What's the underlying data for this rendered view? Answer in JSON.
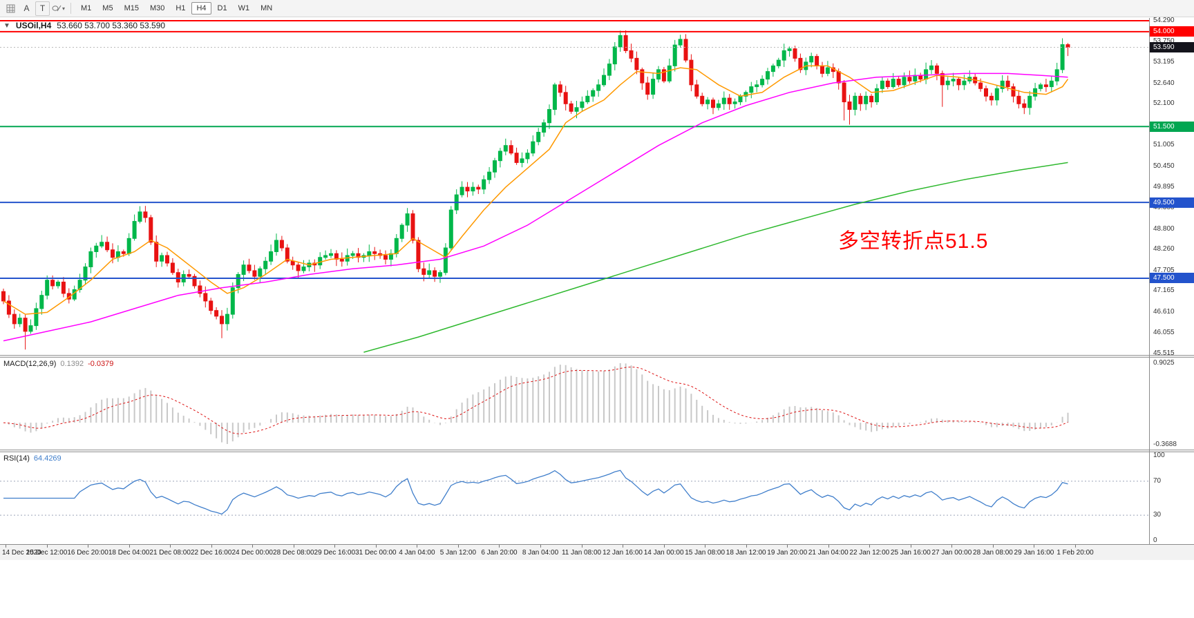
{
  "toolbar": {
    "text_label_tool": "A",
    "text_tool": "T",
    "timeframes": [
      "M1",
      "M5",
      "M15",
      "M30",
      "H1",
      "H4",
      "D1",
      "W1",
      "MN"
    ],
    "active_timeframe": "H4"
  },
  "icons": {
    "caret_down": "▾",
    "one_click_arrow": "▼"
  },
  "chart_data": {
    "type": "candlestick",
    "symbol_title": "USOil,H4",
    "ohlc_text": "53.660 53.700 53.360 53.590",
    "timeframe": "H4",
    "price_min": 45.515,
    "price_max": 54.29,
    "up_color": "#00b74a",
    "down_color": "#e81212",
    "first_open": 47.15,
    "closes": [
      46.9,
      46.55,
      46.3,
      46.45,
      46.1,
      46.25,
      46.7,
      47.05,
      47.45,
      47.3,
      47.4,
      47.1,
      46.95,
      47.2,
      47.45,
      47.8,
      48.2,
      48.35,
      48.45,
      48.25,
      48.05,
      48.2,
      48.15,
      48.55,
      49,
      49.25,
      49.1,
      48.45,
      47.95,
      48.1,
      47.9,
      47.65,
      47.4,
      47.6,
      47.55,
      47.3,
      47.1,
      46.9,
      46.65,
      46.5,
      46.3,
      46.55,
      47.25,
      47.6,
      47.85,
      47.7,
      47.55,
      47.75,
      47.95,
      48.2,
      48.5,
      48.3,
      47.95,
      47.85,
      47.7,
      47.8,
      47.9,
      47.85,
      48.05,
      48.1,
      48.15,
      48,
      47.95,
      48.1,
      48.15,
      48.05,
      48.1,
      48.2,
      48.15,
      48.1,
      48,
      48.15,
      48.55,
      48.9,
      49.2,
      48.5,
      47.75,
      47.6,
      47.7,
      47.55,
      47.65,
      48.3,
      49.3,
      49.7,
      49.9,
      49.8,
      49.9,
      49.85,
      50.1,
      50.3,
      50.6,
      50.85,
      51,
      50.8,
      50.55,
      50.65,
      50.8,
      51.1,
      51.35,
      51.6,
      51.95,
      52.6,
      52.4,
      52.1,
      51.9,
      52,
      52.15,
      52.3,
      52.45,
      52.6,
      52.85,
      53.15,
      53.6,
      53.9,
      53.5,
      53.3,
      53,
      52.65,
      52.35,
      52.75,
      53,
      52.7,
      53.1,
      53.65,
      53.8,
      53.25,
      52.6,
      52.3,
      52.1,
      52.2,
      52,
      52.1,
      52.25,
      52.1,
      52.15,
      52.3,
      52.4,
      52.55,
      52.6,
      52.75,
      52.95,
      53.1,
      53.25,
      53.5,
      53.55,
      53.3,
      53,
      53.2,
      53.35,
      53.1,
      52.9,
      53.05,
      52.95,
      52.65,
      52.15,
      51.95,
      52.3,
      52.1,
      52.3,
      52.15,
      52.5,
      52.7,
      52.55,
      52.75,
      52.6,
      52.8,
      52.7,
      52.85,
      52.75,
      53,
      53.1,
      52.9,
      52.6,
      52.7,
      52.75,
      52.6,
      52.7,
      52.8,
      52.65,
      52.5,
      52.3,
      52.2,
      52.5,
      52.7,
      52.55,
      52.3,
      52.1,
      52,
      52.3,
      52.5,
      52.6,
      52.55,
      52.7,
      53,
      53.66,
      53.59
    ],
    "wick_overrides": {
      "4": {
        "low": 45.62
      },
      "25": {
        "high": 49.4
      },
      "40": {
        "low": 45.92
      },
      "113": {
        "high": 54.03
      },
      "124": {
        "high": 53.92
      },
      "154": {
        "low": 51.66
      },
      "155": {
        "low": 51.55
      },
      "172": {
        "low": 52.02
      },
      "195": {
        "low": 53.36,
        "high": 53.7
      }
    },
    "h_lines": [
      {
        "price": 54.29,
        "color": "#ff0000",
        "width": 2
      },
      {
        "price": 54.0,
        "color": "#ff0000",
        "width": 2,
        "badge": "54.000"
      },
      {
        "price": 51.5,
        "color": "#00a651",
        "width": 2,
        "badge": "51.500"
      },
      {
        "price": 49.5,
        "color": "#2353cc",
        "width": 2,
        "badge": "49.500"
      },
      {
        "price": 47.5,
        "color": "#2353cc",
        "width": 2,
        "badge": "47.500"
      }
    ],
    "current_price": {
      "value": "53.590",
      "price": 53.59,
      "badge_color": "#14141c"
    },
    "moving_averages": [
      {
        "name": "ma-fast",
        "color": "#ff9900",
        "points": [
          [
            0,
            46.9
          ],
          [
            4,
            46.55
          ],
          [
            8,
            46.6
          ],
          [
            12,
            47.0
          ],
          [
            16,
            47.45
          ],
          [
            20,
            48.0
          ],
          [
            24,
            48.2
          ],
          [
            27,
            48.5
          ],
          [
            30,
            48.3
          ],
          [
            34,
            47.85
          ],
          [
            38,
            47.4
          ],
          [
            41,
            47.1
          ],
          [
            44,
            47.25
          ],
          [
            48,
            47.6
          ],
          [
            52,
            48.0
          ],
          [
            56,
            47.85
          ],
          [
            60,
            48.0
          ],
          [
            64,
            48.05
          ],
          [
            68,
            48.1
          ],
          [
            72,
            48.15
          ],
          [
            75,
            48.55
          ],
          [
            78,
            48.3
          ],
          [
            81,
            48.05
          ],
          [
            84,
            48.6
          ],
          [
            88,
            49.3
          ],
          [
            92,
            49.9
          ],
          [
            96,
            50.4
          ],
          [
            100,
            50.9
          ],
          [
            103,
            51.6
          ],
          [
            106,
            51.9
          ],
          [
            110,
            52.2
          ],
          [
            113,
            52.6
          ],
          [
            116,
            52.95
          ],
          [
            120,
            52.9
          ],
          [
            124,
            53.05
          ],
          [
            127,
            53.0
          ],
          [
            131,
            52.6
          ],
          [
            135,
            52.3
          ],
          [
            139,
            52.4
          ],
          [
            143,
            52.8
          ],
          [
            147,
            53.1
          ],
          [
            151,
            53.1
          ],
          [
            155,
            52.8
          ],
          [
            159,
            52.4
          ],
          [
            163,
            52.45
          ],
          [
            167,
            52.65
          ],
          [
            171,
            52.85
          ],
          [
            175,
            52.8
          ],
          [
            179,
            52.7
          ],
          [
            183,
            52.55
          ],
          [
            187,
            52.4
          ],
          [
            191,
            52.35
          ],
          [
            194,
            52.55
          ],
          [
            195,
            52.75
          ]
        ]
      },
      {
        "name": "ma-mid",
        "color": "#ff00ff",
        "points": [
          [
            0,
            45.85
          ],
          [
            8,
            46.1
          ],
          [
            16,
            46.35
          ],
          [
            24,
            46.7
          ],
          [
            32,
            47.05
          ],
          [
            40,
            47.25
          ],
          [
            48,
            47.4
          ],
          [
            56,
            47.6
          ],
          [
            64,
            47.75
          ],
          [
            72,
            47.85
          ],
          [
            80,
            48.0
          ],
          [
            88,
            48.35
          ],
          [
            96,
            48.9
          ],
          [
            104,
            49.6
          ],
          [
            112,
            50.3
          ],
          [
            120,
            51.0
          ],
          [
            128,
            51.6
          ],
          [
            136,
            52.05
          ],
          [
            144,
            52.4
          ],
          [
            152,
            52.65
          ],
          [
            160,
            52.8
          ],
          [
            168,
            52.85
          ],
          [
            176,
            52.9
          ],
          [
            184,
            52.9
          ],
          [
            190,
            52.85
          ],
          [
            195,
            52.8
          ]
        ]
      },
      {
        "name": "ma-slow",
        "color": "#2db82d",
        "points": [
          [
            66,
            45.55
          ],
          [
            76,
            45.95
          ],
          [
            86,
            46.4
          ],
          [
            96,
            46.85
          ],
          [
            106,
            47.3
          ],
          [
            116,
            47.75
          ],
          [
            126,
            48.2
          ],
          [
            136,
            48.65
          ],
          [
            146,
            49.05
          ],
          [
            156,
            49.45
          ],
          [
            166,
            49.8
          ],
          [
            176,
            50.1
          ],
          [
            186,
            50.35
          ],
          [
            195,
            50.55
          ]
        ]
      }
    ],
    "axis_ticks": [
      "54.290",
      "53.750",
      "53.195",
      "52.640",
      "52.100",
      "51.005",
      "50.450",
      "49.895",
      "49.355",
      "48.800",
      "48.260",
      "47.705",
      "47.165",
      "46.610",
      "46.055",
      "45.515"
    ],
    "annotation": {
      "text": "多空转折点51.5",
      "color": "#ff0000"
    },
    "macd": {
      "label": "MACD(12,26,9)",
      "value_main": "0.1392",
      "value_signal": "-0.0379",
      "fast": 12,
      "slow": 26,
      "signal_period": 9,
      "histogram_color": "#c8c8c8",
      "signal_color": "#dd1111",
      "axis_top": "0.9025",
      "axis_bottom": "-0.3688"
    },
    "rsi": {
      "label": "RSI(14)",
      "value": "64.4269",
      "period": 14,
      "levels": [
        70,
        30
      ],
      "line_color": "#3f7ecb",
      "axis_ticks": [
        "100",
        "70",
        "30",
        "0"
      ]
    },
    "time_labels": [
      "14 Dec 2020",
      "15 Dec 12:00",
      "16 Dec 20:00",
      "18 Dec 04:00",
      "21 Dec 08:00",
      "22 Dec 16:00",
      "24 Dec 00:00",
      "28 Dec 08:00",
      "29 Dec 16:00",
      "31 Dec 00:00",
      "4 Jan 04:00",
      "5 Jan 12:00",
      "6 Jan 20:00",
      "8 Jan 04:00",
      "11 Jan 08:00",
      "12 Jan 16:00",
      "14 Jan 00:00",
      "15 Jan 08:00",
      "18 Jan 12:00",
      "19 Jan 20:00",
      "21 Jan 04:00",
      "22 Jan 12:00",
      "25 Jan 16:00",
      "27 Jan 00:00",
      "28 Jan 08:00",
      "29 Jan 16:00",
      "1 Feb 20:00"
    ]
  }
}
